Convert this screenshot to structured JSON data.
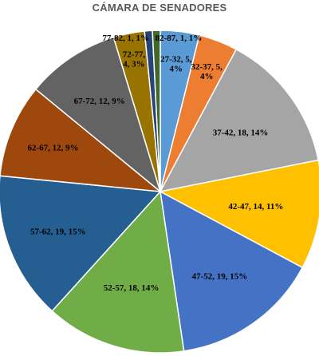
{
  "chart_data": {
    "type": "pie",
    "title": "CÁMARA DE SENADORES",
    "slices": [
      {
        "label": "27-32",
        "value": 5,
        "pct": "4%",
        "color": "#5B9BD5",
        "text_lines": [
          "27-32, 5,",
          "4%"
        ]
      },
      {
        "label": "32-37",
        "value": 5,
        "pct": "4%",
        "color": "#ED7D31",
        "text_lines": [
          "32-37, 5,",
          "4%"
        ]
      },
      {
        "label": "37-42",
        "value": 18,
        "pct": "14%",
        "color": "#A5A5A5",
        "text_lines": [
          "37-42, 18, 14%"
        ]
      },
      {
        "label": "42-47",
        "value": 14,
        "pct": "11%",
        "color": "#FFC000",
        "text_lines": [
          "42-47, 14, 11%"
        ]
      },
      {
        "label": "47-52",
        "value": 19,
        "pct": "15%",
        "color": "#4472C4",
        "text_lines": [
          "47-52, 19, 15%"
        ]
      },
      {
        "label": "52-57",
        "value": 18,
        "pct": "14%",
        "color": "#70AD47",
        "text_lines": [
          "52-57, 18, 14%"
        ]
      },
      {
        "label": "57-62",
        "value": 19,
        "pct": "15%",
        "color": "#255E91",
        "text_lines": [
          "57-62, 19, 15%"
        ]
      },
      {
        "label": "62-67",
        "value": 12,
        "pct": "9%",
        "color": "#9E480E",
        "text_lines": [
          "62-67, 12, 9%"
        ]
      },
      {
        "label": "67-72",
        "value": 12,
        "pct": "9%",
        "color": "#636363",
        "text_lines": [
          "67-72, 12, 9%"
        ]
      },
      {
        "label": "72-77",
        "value": 4,
        "pct": "3%",
        "color": "#997300",
        "text_lines": [
          "72-77,",
          "4, 3%"
        ]
      },
      {
        "label": "77-82",
        "value": 1,
        "pct": "1%",
        "color": "#264478",
        "text_lines": [
          "77-82, 1, 1%"
        ]
      },
      {
        "label": "82-87",
        "value": 1,
        "pct": "1%",
        "color": "#43682B",
        "text_lines": [
          "82-87, 1, 1%"
        ]
      }
    ]
  }
}
